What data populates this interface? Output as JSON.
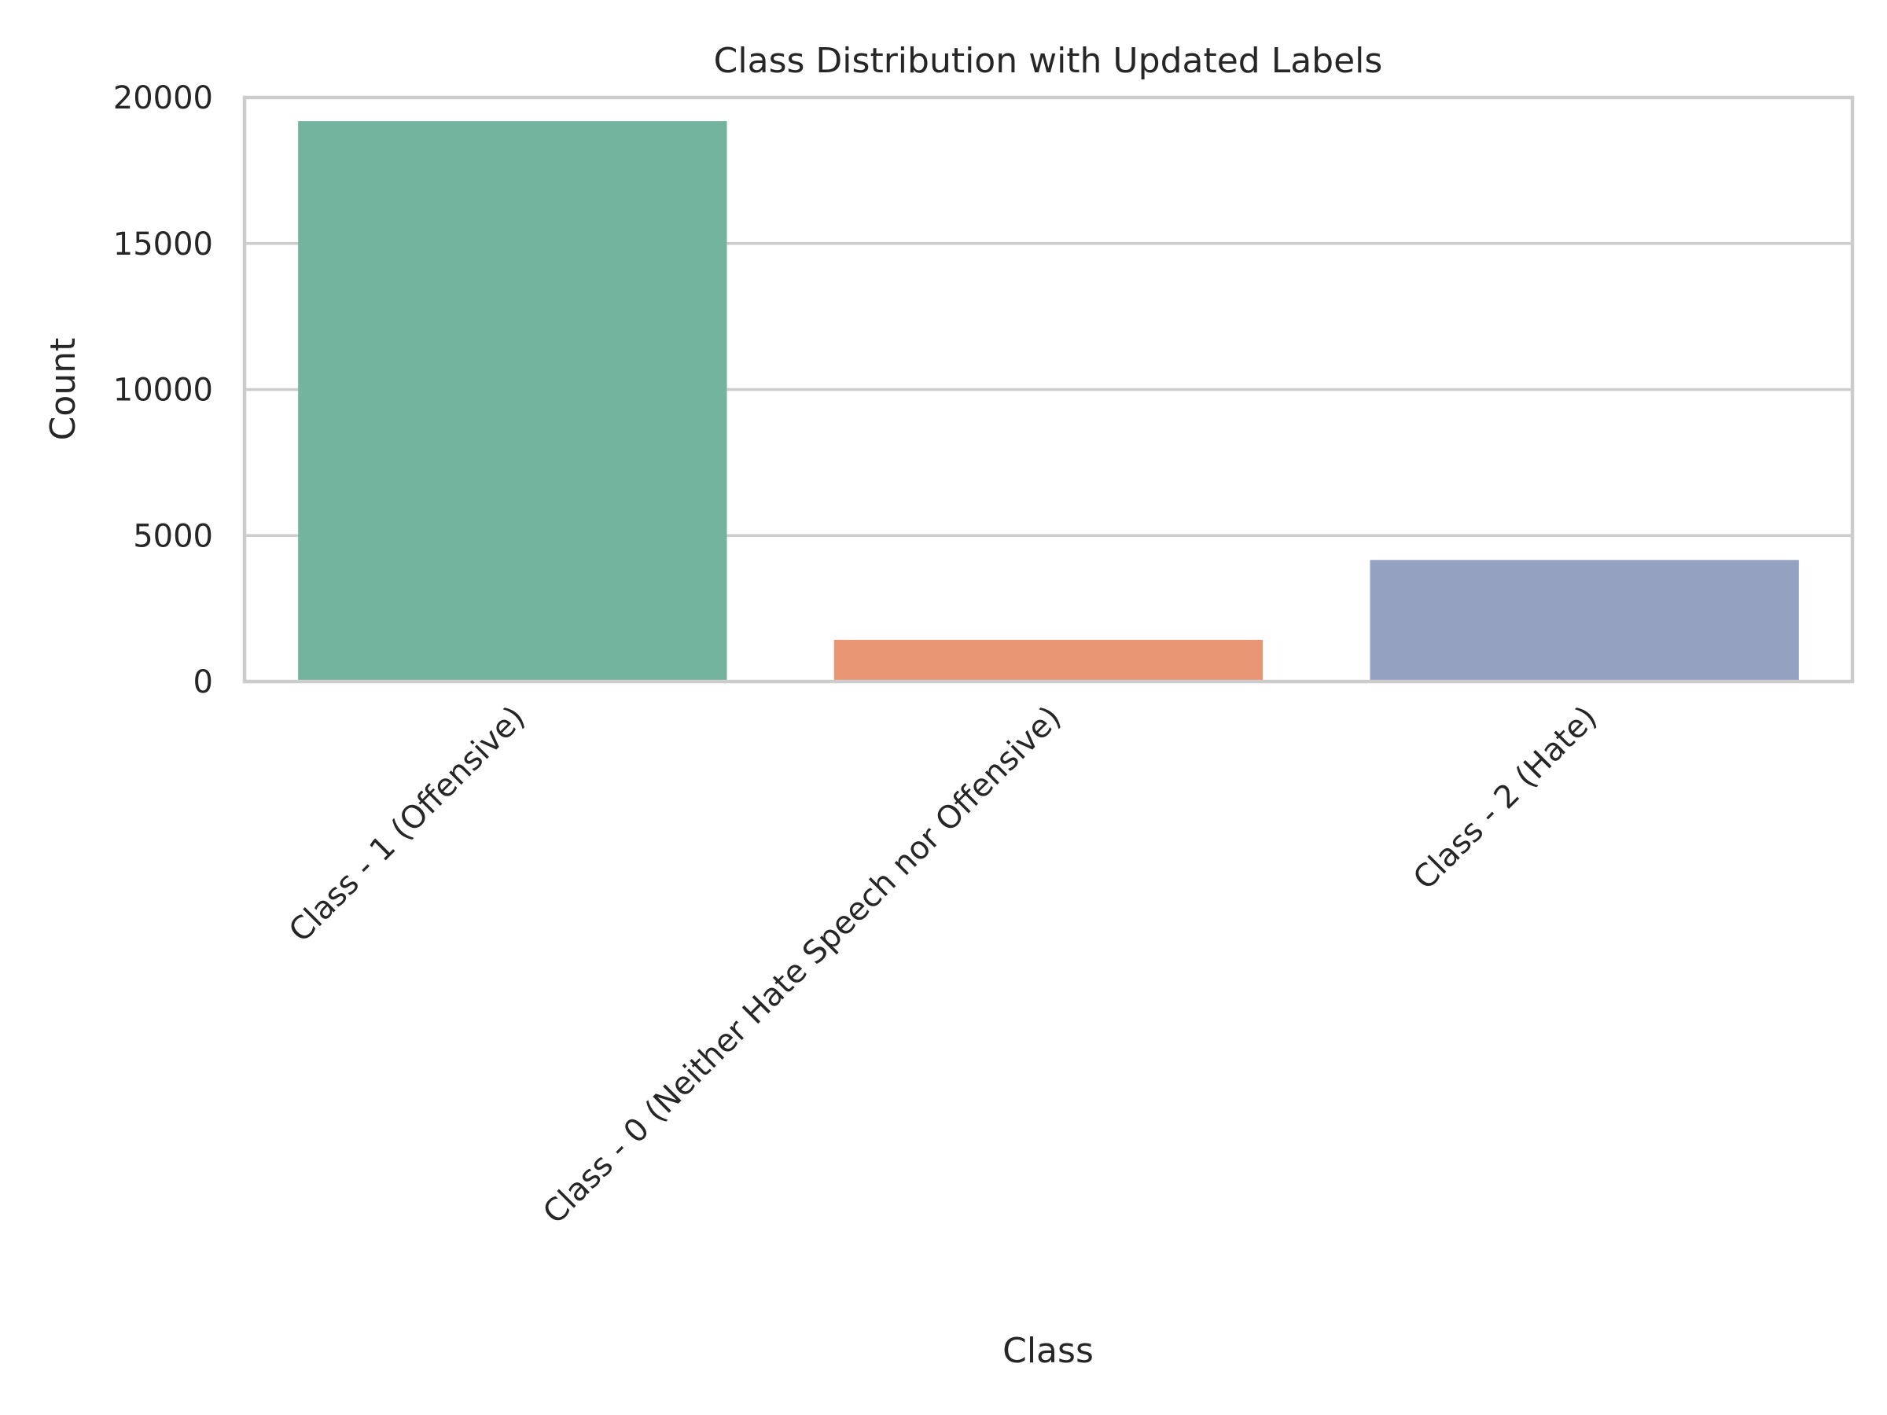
{
  "chart_data": {
    "type": "bar",
    "title": "Class Distribution with Updated Labels",
    "xlabel": "Class",
    "ylabel": "Count",
    "categories": [
      "Class - 1 (Offensive)",
      "Class - 0 (Neither Hate Speech nor Offensive)",
      "Class - 2 (Hate)"
    ],
    "values": [
      19190,
      1430,
      4163
    ],
    "colors": [
      "#73b49f",
      "#e89673",
      "#94a1c1"
    ],
    "ylim": [
      0,
      20000
    ],
    "yticks": [
      0,
      5000,
      10000,
      15000,
      20000
    ],
    "ytick_labels": [
      "0",
      "5000",
      "10000",
      "15000",
      "20000"
    ],
    "grid": "horizontal",
    "x_tick_rotation": 45
  }
}
